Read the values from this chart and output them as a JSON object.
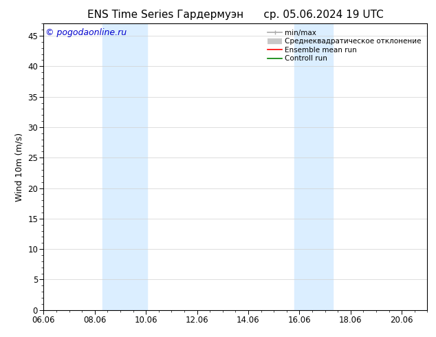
{
  "title": "ENS Time Series Гардермуэн      ср. 05.06.2024 19 UTC",
  "ylabel": "Wind 10m (m/s)",
  "ylim": [
    0,
    47
  ],
  "yticks": [
    0,
    5,
    10,
    15,
    20,
    25,
    30,
    35,
    40,
    45
  ],
  "total_days": 15,
  "xtick_labels": [
    "06.06",
    "08.06",
    "10.06",
    "12.06",
    "14.06",
    "16.06",
    "18.06",
    "20.06"
  ],
  "xtick_positions_days": [
    0,
    2,
    4,
    6,
    8,
    10,
    12,
    14
  ],
  "shaded_regions": [
    {
      "xstart_day": 2.3,
      "xend_day": 4.05,
      "color": "#dbeeff"
    },
    {
      "xstart_day": 9.8,
      "xend_day": 11.3,
      "color": "#dbeeff"
    }
  ],
  "watermark": "© pogodaonline.ru",
  "watermark_color": "#0000cc",
  "bg_color": "#ffffff",
  "plot_bg_color": "#ffffff",
  "grid_color": "#d0d0d0",
  "legend_items": [
    {
      "label": "min/max",
      "color": "#aaaaaa",
      "lw": 1.2
    },
    {
      "label": "Среднеквадратическое отклонение",
      "color": "#c8c8c8",
      "lw": 6
    },
    {
      "label": "Ensemble mean run",
      "color": "#ff0000",
      "lw": 1.2
    },
    {
      "label": "Controll run",
      "color": "#008000",
      "lw": 1.2
    }
  ],
  "title_fontsize": 11,
  "axis_fontsize": 9,
  "tick_fontsize": 8.5,
  "watermark_fontsize": 9,
  "legend_fontsize": 7.5
}
